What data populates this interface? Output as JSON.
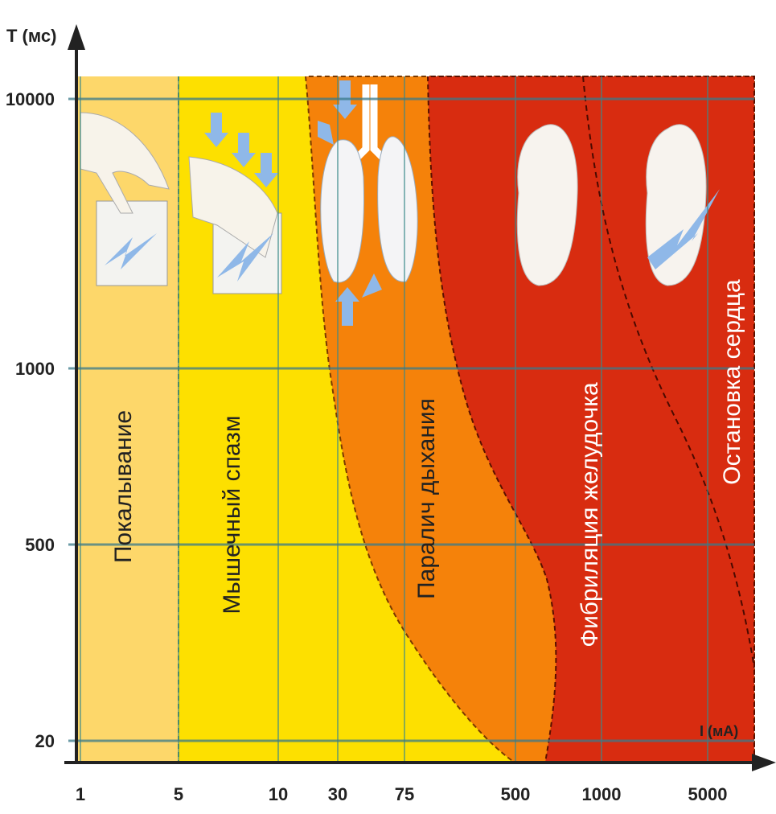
{
  "y_axis_label": "T (мс)",
  "x_axis_label": "I (мА)",
  "xticks": [
    1,
    5,
    10,
    30,
    75,
    500,
    1000,
    5000
  ],
  "yticks": [
    10000,
    1000,
    500,
    20
  ],
  "zones": [
    {
      "label": "Покалывание"
    },
    {
      "label": "Мышечный спазм"
    },
    {
      "label": "Паралич дыхания"
    },
    {
      "label": "Фибриляция желудочка"
    },
    {
      "label": "Остановка сердца"
    }
  ]
}
